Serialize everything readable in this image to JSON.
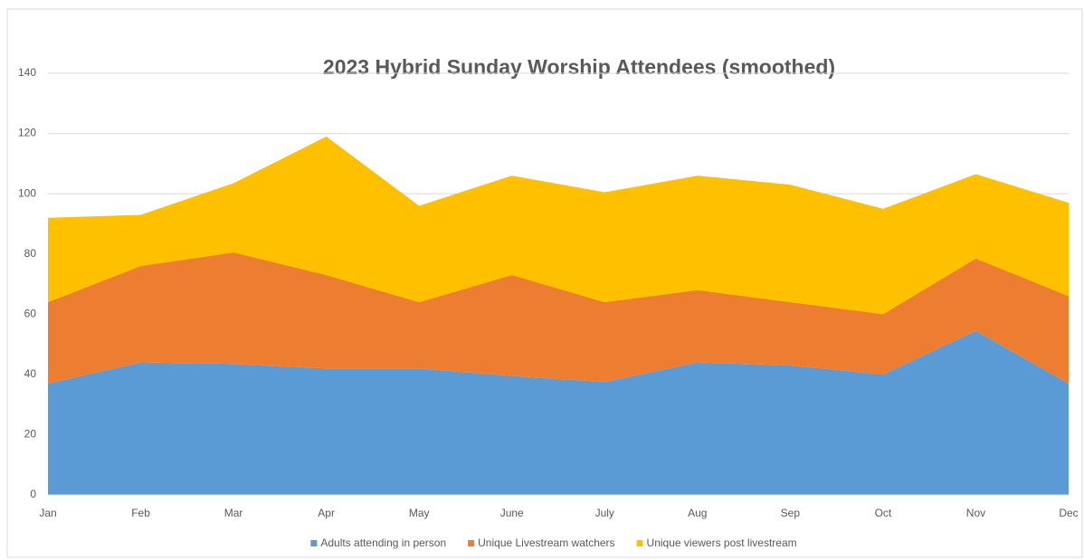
{
  "chart_data": {
    "type": "stacked_area",
    "title": "2023 Hybrid Sunday Worship Attendees (smoothed)",
    "categories": [
      "Jan",
      "Feb",
      "Mar",
      "Apr",
      "May",
      "June",
      "July",
      "Aug",
      "Sep",
      "Oct",
      "Nov",
      "Dec"
    ],
    "series": [
      {
        "name": "Adults attending in person",
        "color": "#5b9bd5",
        "values": [
          37,
          44,
          43.5,
          42,
          42,
          39.5,
          37.5,
          44,
          43,
          40,
          54.5,
          37
        ]
      },
      {
        "name": "Unique Livestream watchers",
        "color": "#ed7d31",
        "values": [
          27,
          32,
          37,
          31,
          22,
          33.5,
          26.5,
          24,
          21,
          20,
          24,
          29
        ]
      },
      {
        "name": "Unique viewers post livestream",
        "color": "#ffc000",
        "values": [
          28,
          17,
          23,
          46,
          32,
          33,
          36.5,
          38,
          39,
          35,
          28,
          31
        ]
      }
    ],
    "ylim": [
      0,
      140
    ],
    "yticks": [
      0,
      20,
      40,
      60,
      80,
      100,
      120,
      140
    ],
    "grid": true,
    "legend": "bottom"
  }
}
